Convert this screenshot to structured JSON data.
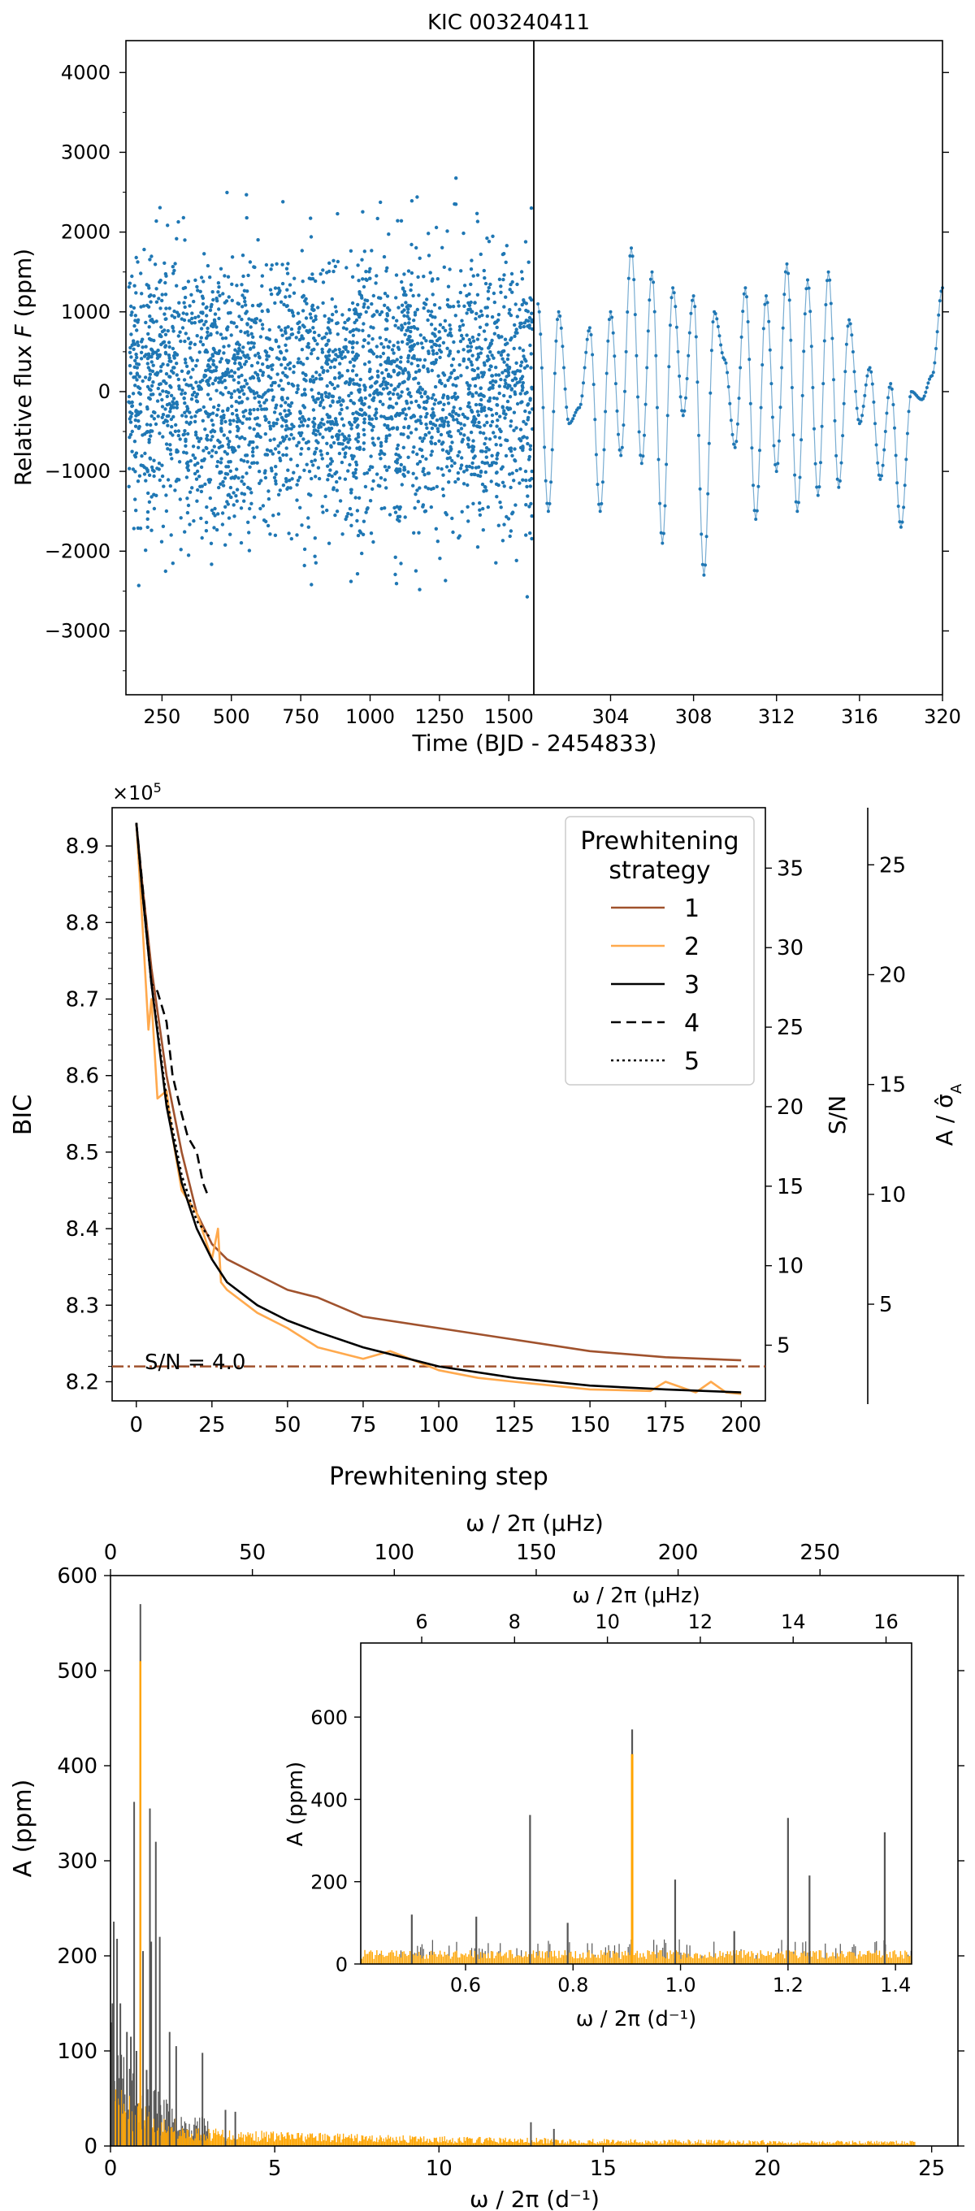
{
  "chart_data": [
    {
      "type": "scatter",
      "title": "KIC 003240411",
      "xlabel": "Time (BJD - 2454833)",
      "ylabel": "Relative flux F (ppm)",
      "left_panel": {
        "xlim": [
          120,
          1590
        ],
        "xticks": [
          250,
          500,
          750,
          1000,
          1250,
          1500
        ],
        "ylim": [
          -3800,
          4400
        ],
        "yticks": [
          -3000,
          -2000,
          -1000,
          0,
          1000,
          2000,
          3000,
          4000
        ],
        "ytick_labels": [
          "−3000",
          "−2000",
          "−1000",
          "0",
          "1000",
          "2000",
          "3000",
          "4000"
        ],
        "point_cloud": {
          "x_start": 130,
          "x_end": 1585,
          "typical_range": [
            -2500,
            2500
          ],
          "extreme_range": [
            -3300,
            4050
          ],
          "gaps_at": [
            730,
            1345,
            1535
          ]
        }
      },
      "right_panel": {
        "xlim": [
          300.3,
          320
        ],
        "xticks": [
          304,
          308,
          312,
          316,
          320
        ],
        "ylim": [
          -3800,
          4400
        ],
        "x": [
          300.5,
          301.0,
          301.5,
          302.0,
          302.5,
          303.0,
          303.5,
          304.0,
          304.5,
          305.0,
          305.5,
          306.0,
          306.5,
          307.0,
          307.5,
          308.0,
          308.5,
          309.0,
          309.5,
          310.0,
          310.5,
          311.0,
          311.5,
          312.0,
          312.5,
          313.0,
          313.5,
          314.0,
          314.5,
          315.0,
          315.5,
          316.0,
          316.5,
          317.0,
          317.5,
          318.0,
          318.5,
          319.0,
          319.5,
          320.0
        ],
        "y": [
          1100,
          -1500,
          1000,
          -400,
          -200,
          800,
          -1500,
          1000,
          -800,
          1800,
          -900,
          1500,
          -1900,
          1300,
          -300,
          1200,
          -2300,
          1000,
          400,
          -700,
          1300,
          -1600,
          1200,
          -1000,
          1600,
          -1500,
          1400,
          -1300,
          1500,
          -1200,
          900,
          -400,
          300,
          -1100,
          100,
          -1700,
          0,
          -100,
          200,
          1300
        ],
        "color": "#1f77b4"
      }
    },
    {
      "type": "line",
      "exponent_label": "×10^5",
      "xlabel": "Prewhitening step",
      "ylabel": "BIC",
      "ylabel_right": "S/N",
      "ylabel_far_right": "A / σ̂_A",
      "xlim": [
        -8,
        208
      ],
      "xticks": [
        0,
        25,
        50,
        75,
        100,
        125,
        150,
        175,
        200
      ],
      "ylim": [
        8.175,
        8.95
      ],
      "yticks": [
        8.2,
        8.3,
        8.4,
        8.5,
        8.6,
        8.7,
        8.8,
        8.9
      ],
      "sn_ticks": [
        5,
        10,
        15,
        20,
        25,
        30,
        35
      ],
      "amp_ticks": [
        5,
        10,
        15,
        20,
        25
      ],
      "threshold": {
        "value": 8.22,
        "label": "S/N = 4.0",
        "color": "#a0522d"
      },
      "legend": {
        "title_line1": "Prewhitening",
        "title_line2": "strategy",
        "position": "top-right"
      },
      "series": [
        {
          "name": "1",
          "color": "#a0522d",
          "dash": "solid",
          "x": [
            0,
            2,
            5,
            10,
            15,
            20,
            25,
            30,
            40,
            50,
            60,
            75,
            100,
            125,
            150,
            175,
            200
          ],
          "y": [
            8.93,
            8.85,
            8.74,
            8.6,
            8.5,
            8.42,
            8.38,
            8.36,
            8.34,
            8.32,
            8.31,
            8.285,
            8.27,
            8.255,
            8.24,
            8.232,
            8.228
          ]
        },
        {
          "name": "2",
          "color": "#ffa94d",
          "dash": "solid",
          "x": [
            0,
            2,
            4,
            5,
            7,
            10,
            12,
            15,
            20,
            25,
            27,
            28,
            30,
            40,
            50,
            60,
            75,
            84,
            100,
            113,
            125,
            150,
            170,
            175,
            185,
            190,
            195,
            200
          ],
          "y": [
            8.93,
            8.8,
            8.66,
            8.7,
            8.57,
            8.58,
            8.52,
            8.45,
            8.42,
            8.36,
            8.4,
            8.33,
            8.32,
            8.29,
            8.27,
            8.245,
            8.23,
            8.24,
            8.215,
            8.205,
            8.2,
            8.19,
            8.188,
            8.2,
            8.186,
            8.2,
            8.186,
            8.184
          ]
        },
        {
          "name": "3",
          "color": "#000000",
          "dash": "solid",
          "x": [
            0,
            2,
            5,
            10,
            15,
            20,
            25,
            30,
            40,
            50,
            60,
            75,
            100,
            125,
            150,
            175,
            200
          ],
          "y": [
            8.93,
            8.84,
            8.72,
            8.56,
            8.46,
            8.4,
            8.36,
            8.33,
            8.3,
            8.28,
            8.265,
            8.245,
            8.22,
            8.205,
            8.195,
            8.19,
            8.186
          ]
        },
        {
          "name": "4",
          "color": "#000000",
          "dash": "dashed",
          "x": [
            0,
            2,
            5,
            7,
            10,
            12,
            15,
            17,
            20,
            22,
            24
          ],
          "y": [
            8.93,
            8.85,
            8.72,
            8.71,
            8.67,
            8.6,
            8.55,
            8.52,
            8.5,
            8.46,
            8.44
          ]
        },
        {
          "name": "5",
          "color": "#000000",
          "dash": "dotted",
          "x": [
            0,
            2,
            5,
            10,
            15,
            20,
            24
          ],
          "y": [
            8.93,
            8.84,
            8.72,
            8.57,
            8.47,
            8.41,
            8.39
          ]
        }
      ]
    },
    {
      "type": "line",
      "xlabel": "ω / 2π (d⁻¹)",
      "xlabel_top": "ω / 2π (μHz)",
      "ylabel": "A (ppm)",
      "xlim": [
        0,
        25.8
      ],
      "xticks": [
        0,
        5,
        10,
        15,
        20,
        25
      ],
      "top_xlim": [
        0,
        298.6
      ],
      "top_xticks": [
        0,
        50,
        100,
        150,
        200,
        250
      ],
      "ylim": [
        0,
        600
      ],
      "yticks": [
        0,
        100,
        200,
        300,
        400,
        500,
        600
      ],
      "colors": {
        "data": "#555555",
        "model": "#ffa500"
      },
      "peaks": [
        {
          "freq": 0.03,
          "amp": 130
        },
        {
          "freq": 0.06,
          "amp": 150
        },
        {
          "freq": 0.1,
          "amp": 236
        },
        {
          "freq": 0.2,
          "amp": 218
        },
        {
          "freq": 0.3,
          "amp": 150
        },
        {
          "freq": 0.5,
          "amp": 120
        },
        {
          "freq": 0.62,
          "amp": 115
        },
        {
          "freq": 0.72,
          "amp": 362
        },
        {
          "freq": 0.79,
          "amp": 100
        },
        {
          "freq": 0.91,
          "amp": 570,
          "model": 510
        },
        {
          "freq": 0.99,
          "amp": 205
        },
        {
          "freq": 1.1,
          "amp": 80
        },
        {
          "freq": 1.2,
          "amp": 355
        },
        {
          "freq": 1.24,
          "amp": 215
        },
        {
          "freq": 1.38,
          "amp": 320
        },
        {
          "freq": 1.5,
          "amp": 220
        },
        {
          "freq": 1.8,
          "amp": 120
        },
        {
          "freq": 2.0,
          "amp": 105
        },
        {
          "freq": 2.8,
          "amp": 98
        },
        {
          "freq": 3.5,
          "amp": 38
        },
        {
          "freq": 3.8,
          "amp": 36
        },
        {
          "freq": 12.8,
          "amp": 25
        },
        {
          "freq": 13.5,
          "amp": 18
        }
      ],
      "inset": {
        "xlabel": "ω / 2π (d⁻¹)",
        "xlabel_top": "ω / 2π (μHz)",
        "ylabel": "A (ppm)",
        "xlim": [
          0.405,
          1.43
        ],
        "xticks": [
          0.6,
          0.8,
          1.0,
          1.2,
          1.4
        ],
        "xtick_labels": [
          "0.6",
          "0.8",
          "1.0",
          "1.2",
          "1.4"
        ],
        "top_xticks": [
          6,
          8,
          10,
          12,
          14,
          16
        ],
        "ylim": [
          0,
          780
        ],
        "yticks": [
          0,
          200,
          400,
          600
        ]
      }
    }
  ]
}
